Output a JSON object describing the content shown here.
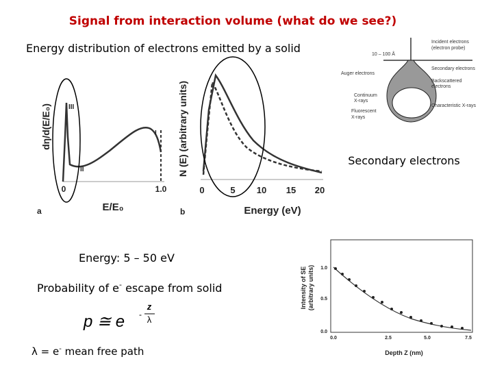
{
  "title": "Signal from interaction volume (what do we see?)",
  "subtitle": "Energy distribution of electrons emitted by a solid",
  "figure_a": {
    "panel_label": "a",
    "y_label": "dη/d(E/E₀)",
    "x_label": "E/E₀",
    "x_ticks": [
      "0",
      "1.0"
    ],
    "region_labels": [
      "III",
      "II",
      "I"
    ]
  },
  "figure_b": {
    "panel_label": "b",
    "y_label": "N (E) (arbitrary units)",
    "x_label": "Energy (eV)",
    "x_ticks": [
      "0",
      "5",
      "10",
      "15",
      "20"
    ]
  },
  "diagram": {
    "labels": [
      "Incident electrons",
      "(electron probe)",
      "10 – 100 Å",
      "Auger electrons",
      "Secondary electrons",
      "Backscattered",
      "electrons",
      "Continuum",
      "X-rays",
      "Characteristic X-rays",
      "Fluorescent",
      "X-rays"
    ]
  },
  "caption": "Secondary electrons",
  "energy_range": "Energy: 5 – 50 eV",
  "probability": {
    "before": "Probability of e",
    "sup": "-",
    "after": " escape from solid"
  },
  "formula": {
    "base": "p ≅ e",
    "sign": "-",
    "numerator": "z",
    "denominator": "λ"
  },
  "definition": {
    "before": "λ = e",
    "sup": "-",
    "after": " mean free path"
  },
  "figure_c": {
    "y_label": "Intensity of SE",
    "y_label_2": "(arbitrary units)",
    "y_ticks": [
      "0.0",
      "0.5",
      "1.0"
    ],
    "x_label": "Depth Z (nm)",
    "x_ticks": [
      "0.0",
      "2.5",
      "5.0",
      "7.5"
    ]
  }
}
